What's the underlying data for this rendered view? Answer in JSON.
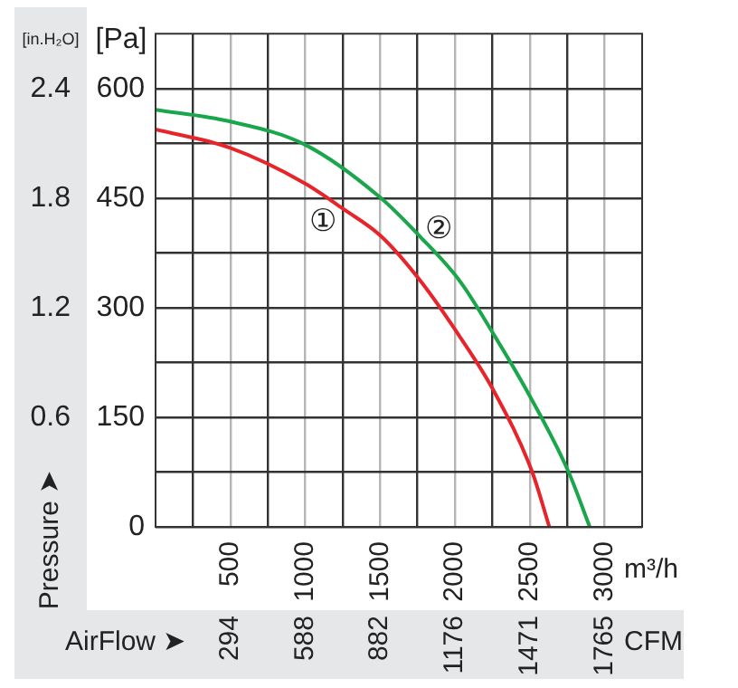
{
  "chart_data": {
    "type": "line",
    "xlabel": "m³/h",
    "x2label": "CFM",
    "ylabel": "[Pa]",
    "y2label": "[in.H₂O]",
    "annotations": [
      "Pressure ➤",
      "AirFlow ➤"
    ],
    "series": [
      {
        "name": "①",
        "color": "#e8242b",
        "x": [
          0,
          494,
          999,
          1262,
          1505,
          1768,
          2030,
          2254,
          2516,
          2630
        ],
        "values": [
          544,
          519,
          470,
          434,
          398,
          337,
          261,
          188,
          75,
          0
        ]
      },
      {
        "name": "②",
        "color": "#1aa64a",
        "x": [
          0,
          494,
          999,
          1505,
          1768,
          2030,
          2254,
          2497,
          2759,
          2900
        ],
        "values": [
          571,
          555,
          523,
          450,
          397,
          337,
          265,
          180,
          75,
          0
        ]
      }
    ],
    "xlim": [
      0,
      3250
    ],
    "xticks": [
      {
        "value": 250,
        "label": null
      },
      500,
      {
        "value": 750,
        "label": null
      },
      1000,
      {
        "value": 1250,
        "label": null
      },
      1500,
      {
        "value": 1750,
        "label": null
      },
      2000,
      {
        "value": 2250,
        "label": null
      },
      2500,
      {
        "value": 2750,
        "label": null
      },
      3000
    ],
    "x2lim": [
      0,
      1912
    ],
    "x2ticks": [
      294,
      588,
      882,
      1176,
      1471,
      1765
    ],
    "ylim": [
      0,
      675
    ],
    "yticks": [
      0,
      {
        "value": 75,
        "label": null
      },
      150,
      {
        "value": 225,
        "label": null
      },
      300,
      {
        "value": 375,
        "label": null
      },
      450,
      {
        "value": 525,
        "label": null
      },
      600
    ],
    "y2lim": [
      0,
      2.7
    ],
    "y2ticks": [
      0.6,
      1.2,
      1.8,
      2.4
    ],
    "grid": true
  }
}
